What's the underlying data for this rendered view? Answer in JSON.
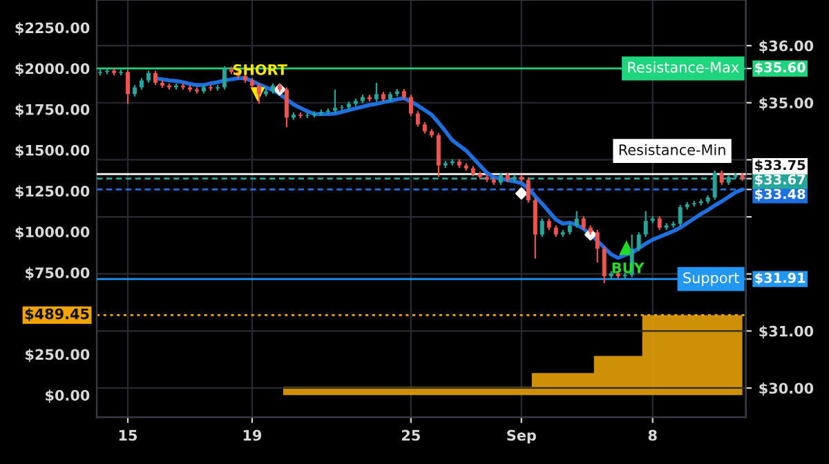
{
  "chart_data": {
    "type": "candlestick",
    "categories": [
      null,
      null,
      null,
      null,
      "15",
      null,
      null,
      null,
      null,
      null,
      null,
      null,
      null,
      null,
      null,
      null,
      null,
      null,
      null,
      null,
      null,
      null,
      "19",
      null,
      null,
      null,
      null,
      null,
      null,
      null,
      null,
      null,
      null,
      null,
      null,
      null,
      null,
      null,
      null,
      null,
      null,
      null,
      null,
      null,
      null,
      "25",
      null,
      null,
      null,
      null,
      null,
      null,
      null,
      null,
      null,
      null,
      null,
      null,
      null,
      null,
      null,
      "Sep",
      null,
      null,
      null,
      null,
      null,
      null,
      null,
      null,
      null,
      null,
      null,
      null,
      null,
      null,
      null,
      null,
      null,
      null,
      "8",
      null,
      null,
      null,
      null,
      null,
      null,
      null,
      null,
      null,
      null,
      null,
      null,
      null
    ],
    "ylim": [
      -135,
      2419
    ],
    "yticks": [
      {
        "value": 0,
        "label": "$0.00"
      },
      {
        "value": 250,
        "label": "$250.00"
      },
      {
        "value": 489.45,
        "label": "$489.45"
      },
      {
        "value": 750,
        "label": "$750.00"
      },
      {
        "value": 1000,
        "label": "$1000.00"
      },
      {
        "value": 1250,
        "label": "$1250.00"
      },
      {
        "value": 1500,
        "label": "$1500.00"
      },
      {
        "value": 1750,
        "label": "$1750.00"
      },
      {
        "value": 2000,
        "label": "$2000.00"
      },
      {
        "value": 2250,
        "label": "$2250.00"
      }
    ],
    "y2lim": [
      29.49,
      36.8
    ],
    "y2ticks": [
      {
        "value": 30,
        "label": "$30.00"
      },
      {
        "value": 31,
        "label": "$31.00"
      },
      {
        "value": 31.91,
        "label": "$31.91"
      },
      {
        "value": 32,
        "label": null
      },
      {
        "value": 33,
        "label": null
      },
      {
        "value": 33.48,
        "label": "$33.48"
      },
      {
        "value": 33.67,
        "label": "$33.67"
      },
      {
        "value": 33.75,
        "label": "$33.75"
      },
      {
        "value": 34,
        "label": null
      },
      {
        "value": 35,
        "label": "$35.00"
      },
      {
        "value": 35.6,
        "label": "$35.60"
      },
      {
        "value": 36,
        "label": "$36.00"
      }
    ],
    "grid": true,
    "series": [
      {
        "type": "area",
        "axis": "y",
        "color": "#e3a008",
        "values": [
          0,
          0,
          0,
          0,
          0,
          0,
          0,
          0,
          0,
          0,
          0,
          0,
          0,
          0,
          0,
          0,
          0,
          0,
          0,
          0,
          0,
          0,
          0,
          0,
          0,
          0,
          0,
          50,
          50,
          50,
          50,
          50,
          50,
          50,
          50,
          50,
          50,
          50,
          50,
          50,
          50,
          50,
          50,
          50,
          50,
          50,
          50,
          50,
          50,
          50,
          50,
          50,
          50,
          50,
          50,
          50,
          50,
          50,
          50,
          50,
          50,
          50,
          50,
          135,
          135,
          135,
          135,
          135,
          135,
          135,
          135,
          135,
          240,
          240,
          240,
          240,
          240,
          240,
          240,
          489.45,
          489.45,
          489.45,
          489.45,
          489.45,
          489.45,
          489.45,
          489.45,
          489.45,
          489.45,
          489.45,
          489.45,
          489.45,
          489.45,
          489.45
        ]
      },
      {
        "type": "line",
        "axis": "y2",
        "color": "#1e6fe0",
        "values": [
          null,
          null,
          null,
          null,
          null,
          null,
          null,
          null,
          35.43,
          35.41,
          35.39,
          35.38,
          35.36,
          35.33,
          35.31,
          35.31,
          35.34,
          35.36,
          35.39,
          35.41,
          35.43,
          35.43,
          35.38,
          35.32,
          35.27,
          35.22,
          35.15,
          35.06,
          34.97,
          34.91,
          34.85,
          34.8,
          34.8,
          34.8,
          34.81,
          34.84,
          34.87,
          34.9,
          34.93,
          34.96,
          34.98,
          35.01,
          35.03,
          35.06,
          35.08,
          35.02,
          34.95,
          34.87,
          34.79,
          34.65,
          34.5,
          34.34,
          34.25,
          34.16,
          34.03,
          33.9,
          33.77,
          33.69,
          33.67,
          33.64,
          33.62,
          33.59,
          33.5,
          33.36,
          33.23,
          33.09,
          32.95,
          32.88,
          32.9,
          32.86,
          32.79,
          32.69,
          32.58,
          32.46,
          32.34,
          32.28,
          32.33,
          32.37,
          32.45,
          32.53,
          32.6,
          32.65,
          32.7,
          32.75,
          32.81,
          32.89,
          32.97,
          33.05,
          33.12,
          33.2,
          33.27,
          33.35,
          33.43,
          33.48
        ]
      },
      {
        "type": "scatter",
        "axis": "y2",
        "color": "#ffffff",
        "marker": "diamond",
        "values": [
          null,
          null,
          null,
          null,
          null,
          null,
          null,
          null,
          null,
          null,
          null,
          null,
          null,
          null,
          null,
          null,
          null,
          null,
          null,
          null,
          null,
          null,
          null,
          null,
          null,
          null,
          35.23,
          null,
          null,
          null,
          null,
          null,
          null,
          null,
          null,
          null,
          null,
          null,
          null,
          null,
          null,
          null,
          null,
          null,
          null,
          null,
          null,
          null,
          null,
          null,
          null,
          null,
          null,
          null,
          null,
          null,
          null,
          null,
          null,
          null,
          null,
          33.41,
          null,
          null,
          null,
          null,
          null,
          null,
          null,
          null,
          null,
          32.69,
          null,
          null,
          null,
          null,
          null,
          null,
          null,
          null,
          null,
          null,
          null,
          null,
          null,
          null,
          null,
          null,
          null,
          null,
          null,
          null,
          null,
          null
        ]
      },
      {
        "axis": "y2",
        "colors": [
          "#26a69a",
          "#26a69a",
          "#ef5350",
          "#26a69a",
          "#ef5350",
          "#26a69a",
          "#26a69a",
          "#26a69a",
          "#ef5350",
          "#ef5350",
          "#ef5350",
          "#26a69a",
          "#ef5350",
          "#ef5350",
          "#ef5350",
          "#26a69a",
          "#ef5350",
          "#26a69a",
          "#26a69a",
          "#ef5350",
          "#ef5350",
          "#ef5350",
          "#ef5350",
          "#ef5350",
          "#26a69a",
          "#26a69a",
          "#ef5350",
          "#ef5350",
          "#26a69a",
          "#ef5350",
          "#26a69a",
          "#26a69a",
          "#26a69a",
          "#26a69a",
          "#26a69a",
          "#26a69a",
          "#26a69a",
          "#26a69a",
          "#26a69a",
          "#ef5350",
          "#26a69a",
          "#ef5350",
          "#26a69a",
          "#26a69a",
          "#ef5350",
          "#ef5350",
          "#ef5350",
          "#ef5350",
          "#ef5350",
          "#ef5350",
          "#26a69a",
          "#26a69a",
          "#ef5350",
          "#ef5350",
          "#ef5350",
          "#ef5350",
          "#ef5350",
          "#ef5350",
          "#26a69a",
          "#ef5350",
          "#26a69a",
          "#ef5350",
          "#ef5350",
          "#ef5350",
          "#26a69a",
          "#ef5350",
          "#ef5350",
          "#26a69a",
          "#26a69a",
          "#26a69a",
          "#ef5350",
          "#ef5350",
          "#ef5350",
          "#ef5350",
          "#26a69a",
          "#ef5350",
          "#26a69a",
          "#26a69a",
          "#26a69a",
          "#26a69a",
          "#26a69a",
          "#ef5350",
          "#26a69a",
          "#26a69a",
          "#26a69a",
          "#26a69a",
          "#26a69a",
          "#26a69a",
          "#26a69a",
          "#26a69a",
          "#ef5350",
          "#26a69a",
          "#26a69a",
          "#ef5350"
        ],
        "ohlc": [
          [
            35.52,
            35.58,
            35.48,
            35.54
          ],
          [
            35.54,
            35.6,
            35.5,
            35.56
          ],
          [
            35.56,
            35.6,
            35.48,
            35.52
          ],
          [
            35.52,
            35.58,
            35.48,
            35.54
          ],
          [
            35.54,
            35.58,
            34.98,
            35.15
          ],
          [
            35.15,
            35.31,
            35.11,
            35.27
          ],
          [
            35.27,
            35.43,
            35.23,
            35.39
          ],
          [
            35.39,
            35.56,
            35.35,
            35.52
          ],
          [
            35.52,
            35.56,
            35.31,
            35.35
          ],
          [
            35.35,
            35.39,
            35.26,
            35.3
          ],
          [
            35.3,
            35.34,
            35.23,
            35.27
          ],
          [
            35.27,
            35.34,
            35.23,
            35.3
          ],
          [
            35.3,
            35.34,
            35.23,
            35.27
          ],
          [
            35.27,
            35.31,
            35.19,
            35.23
          ],
          [
            35.23,
            35.27,
            35.16,
            35.2
          ],
          [
            35.2,
            35.31,
            35.16,
            35.27
          ],
          [
            35.27,
            35.31,
            35.21,
            35.25
          ],
          [
            35.25,
            35.31,
            35.21,
            35.27
          ],
          [
            35.27,
            35.64,
            35.23,
            35.59
          ],
          [
            35.59,
            35.63,
            35.5,
            35.54
          ],
          [
            35.54,
            35.58,
            35.43,
            35.47
          ],
          [
            35.47,
            35.51,
            35.35,
            35.39
          ],
          [
            35.39,
            35.43,
            35.26,
            35.3
          ],
          [
            35.3,
            35.34,
            34.98,
            35.15
          ],
          [
            35.15,
            35.24,
            35.11,
            35.2
          ],
          [
            35.2,
            35.34,
            35.16,
            35.3
          ],
          [
            35.3,
            35.34,
            35.19,
            35.23
          ],
          [
            35.23,
            35.27,
            34.57,
            34.74
          ],
          [
            34.74,
            34.83,
            34.7,
            34.79
          ],
          [
            34.79,
            34.83,
            34.73,
            34.77
          ],
          [
            34.77,
            34.82,
            34.73,
            34.78
          ],
          [
            34.78,
            34.85,
            34.74,
            34.81
          ],
          [
            34.81,
            34.88,
            34.77,
            34.84
          ],
          [
            34.84,
            34.9,
            34.8,
            34.86
          ],
          [
            34.86,
            35.23,
            34.82,
            34.91
          ],
          [
            34.91,
            34.96,
            34.87,
            34.92
          ],
          [
            34.92,
            35.02,
            34.88,
            34.98
          ],
          [
            34.98,
            35.07,
            34.94,
            35.03
          ],
          [
            35.03,
            35.14,
            34.99,
            35.1
          ],
          [
            35.1,
            35.14,
            35.02,
            35.06
          ],
          [
            35.06,
            35.35,
            35.02,
            35.15
          ],
          [
            35.15,
            35.19,
            35.02,
            35.06
          ],
          [
            35.06,
            35.19,
            35.02,
            35.15
          ],
          [
            35.15,
            35.24,
            35.11,
            35.2
          ],
          [
            35.2,
            35.24,
            35.06,
            35.1
          ],
          [
            35.1,
            35.14,
            34.77,
            34.81
          ],
          [
            34.81,
            34.85,
            34.58,
            34.62
          ],
          [
            34.62,
            34.66,
            34.46,
            34.5
          ],
          [
            34.5,
            34.54,
            34.39,
            34.43
          ],
          [
            34.43,
            34.47,
            33.7,
            33.9
          ],
          [
            33.9,
            33.98,
            33.86,
            33.94
          ],
          [
            33.94,
            34.01,
            33.9,
            33.97
          ],
          [
            33.97,
            34.01,
            33.86,
            33.9
          ],
          [
            33.9,
            33.94,
            33.81,
            33.85
          ],
          [
            33.85,
            33.89,
            33.71,
            33.75
          ],
          [
            33.75,
            33.79,
            33.66,
            33.7
          ],
          [
            33.7,
            33.74,
            33.61,
            33.65
          ],
          [
            33.65,
            33.69,
            33.56,
            33.6
          ],
          [
            33.6,
            33.77,
            33.56,
            33.73
          ],
          [
            33.73,
            33.77,
            33.61,
            33.65
          ],
          [
            33.65,
            33.74,
            33.61,
            33.7
          ],
          [
            33.7,
            33.74,
            33.61,
            33.65
          ],
          [
            33.65,
            33.69,
            33.25,
            33.29
          ],
          [
            33.29,
            33.33,
            32.27,
            32.69
          ],
          [
            32.69,
            32.97,
            32.65,
            32.93
          ],
          [
            32.93,
            32.97,
            32.77,
            32.81
          ],
          [
            32.81,
            32.85,
            32.65,
            32.69
          ],
          [
            32.69,
            32.77,
            32.65,
            32.73
          ],
          [
            32.73,
            32.89,
            32.69,
            32.85
          ],
          [
            32.85,
            33.1,
            32.81,
            32.97
          ],
          [
            32.97,
            33.01,
            32.77,
            32.81
          ],
          [
            32.81,
            32.85,
            32.69,
            32.73
          ],
          [
            32.73,
            32.77,
            32.2,
            32.44
          ],
          [
            32.44,
            32.48,
            31.84,
            31.96
          ],
          [
            31.96,
            32.05,
            31.92,
            32.01
          ],
          [
            32.01,
            32.05,
            31.92,
            31.96
          ],
          [
            31.96,
            32.02,
            31.92,
            31.98
          ],
          [
            31.98,
            32.69,
            31.94,
            32.44
          ],
          [
            32.44,
            32.73,
            32.4,
            32.69
          ],
          [
            32.69,
            33.1,
            32.65,
            32.93
          ],
          [
            32.93,
            33.01,
            32.89,
            32.97
          ],
          [
            32.97,
            33.01,
            32.77,
            32.81
          ],
          [
            32.81,
            32.89,
            32.77,
            32.85
          ],
          [
            32.85,
            32.92,
            32.81,
            32.88
          ],
          [
            32.88,
            33.21,
            32.84,
            33.17
          ],
          [
            33.17,
            33.26,
            33.13,
            33.22
          ],
          [
            33.22,
            33.28,
            33.18,
            33.24
          ],
          [
            33.24,
            33.31,
            33.2,
            33.27
          ],
          [
            33.27,
            33.38,
            33.23,
            33.34
          ],
          [
            33.34,
            33.81,
            33.3,
            33.77
          ],
          [
            33.77,
            33.81,
            33.56,
            33.6
          ],
          [
            33.6,
            33.74,
            33.56,
            33.7
          ],
          [
            33.7,
            33.77,
            33.66,
            33.73
          ],
          [
            33.73,
            33.77,
            33.63,
            33.67
          ]
        ]
      }
    ],
    "ref_lines": [
      {
        "axis": "y2",
        "value": 35.6,
        "label": "Resistance-Max",
        "color": "#1ed47c",
        "line_style": "solid"
      },
      {
        "axis": "y2",
        "value": 33.75,
        "label": "Resistance-Min",
        "color": "#ffffff",
        "line_style": "solid"
      },
      {
        "axis": "y2",
        "value": 33.67,
        "color": "#26a69a",
        "line_style": "dashed"
      },
      {
        "axis": "y2",
        "value": 33.48,
        "color": "#1e6fe0",
        "line_style": "dashed"
      },
      {
        "axis": "y2",
        "value": 31.91,
        "label": "Support",
        "color": "#2196f3",
        "line_style": "solid"
      },
      {
        "axis": "y",
        "value": 489.45,
        "color": "#f0a500",
        "line_style": "dotted"
      }
    ],
    "annotations": [
      "SHORT",
      "BUY"
    ]
  }
}
